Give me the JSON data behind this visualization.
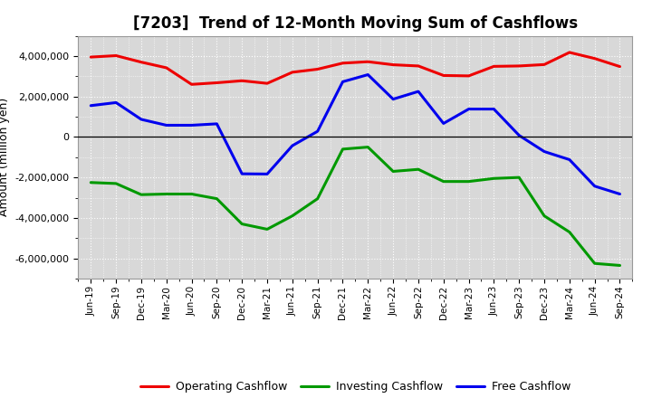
{
  "title": "[7203]  Trend of 12-Month Moving Sum of Cashflows",
  "ylabel": "Amount (million yen)",
  "background_color": "#ffffff",
  "plot_bg_color": "#d8d8d8",
  "grid_color": "#ffffff",
  "dates": [
    "Jun-19",
    "Sep-19",
    "Dec-19",
    "Mar-20",
    "Jun-20",
    "Sep-20",
    "Dec-20",
    "Mar-21",
    "Jun-21",
    "Sep-21",
    "Dec-21",
    "Mar-22",
    "Jun-22",
    "Sep-22",
    "Dec-22",
    "Mar-23",
    "Jun-23",
    "Sep-23",
    "Dec-23",
    "Mar-24",
    "Jun-24",
    "Sep-24"
  ],
  "operating": [
    3950000,
    4020000,
    3700000,
    3420000,
    2600000,
    2680000,
    2780000,
    2650000,
    3200000,
    3350000,
    3650000,
    3720000,
    3570000,
    3510000,
    3040000,
    3020000,
    3490000,
    3510000,
    3580000,
    4180000,
    3880000,
    3480000
  ],
  "investing": [
    -2250000,
    -2300000,
    -2850000,
    -2820000,
    -2820000,
    -3050000,
    -4300000,
    -4560000,
    -3900000,
    -3050000,
    -600000,
    -500000,
    -1700000,
    -1600000,
    -2200000,
    -2200000,
    -2050000,
    -2000000,
    -3900000,
    -4700000,
    -6250000,
    -6350000
  ],
  "free": [
    1550000,
    1700000,
    870000,
    580000,
    580000,
    650000,
    -1820000,
    -1830000,
    -430000,
    280000,
    2730000,
    3080000,
    1870000,
    2250000,
    670000,
    1380000,
    1380000,
    80000,
    -720000,
    -1120000,
    -2430000,
    -2820000
  ],
  "operating_color": "#ee0000",
  "investing_color": "#009900",
  "free_color": "#0000ee",
  "ylim": [
    -7000000,
    5000000
  ],
  "yticks": [
    -6000000,
    -4000000,
    -2000000,
    0,
    2000000,
    4000000
  ],
  "legend_labels": [
    "Operating Cashflow",
    "Investing Cashflow",
    "Free Cashflow"
  ],
  "line_width": 2.2,
  "title_fontsize": 12,
  "ylabel_fontsize": 9,
  "tick_fontsize": 8,
  "xtick_fontsize": 7.5,
  "legend_fontsize": 9
}
